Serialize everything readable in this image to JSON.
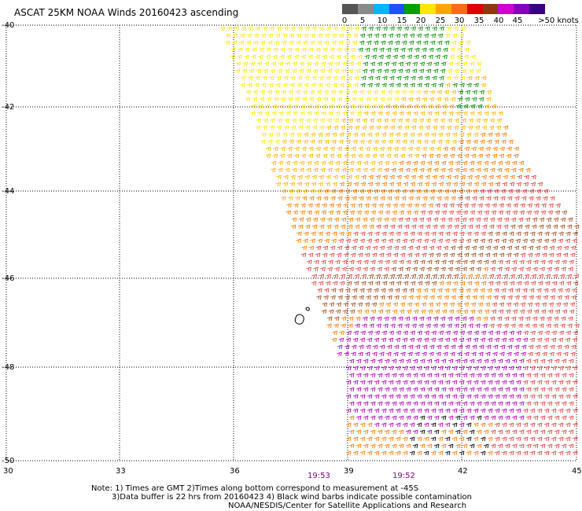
{
  "title": "ASCAT 25KM NOAA Winds 20160423 ascending",
  "color_scale": {
    "ticks": [
      "0",
      "5",
      "10",
      "15",
      "20",
      "25",
      "30",
      "35",
      "40",
      "45",
      ">50 knots"
    ],
    "colors": [
      "#555555",
      "#8a8a8a",
      "#00b4ff",
      "#1f4fff",
      "#00a000",
      "#ffe600",
      "#ffa500",
      "#ff6a1a",
      "#e00000",
      "#8b3a0f",
      "#d000d0",
      "#8000c0",
      "#3a007a"
    ]
  },
  "axes": {
    "x_labels": [
      "30",
      "33",
      "36",
      "39",
      "42",
      "45"
    ],
    "y_labels": [
      "-40",
      "-42",
      "-44",
      "-46",
      "-48",
      "-50"
    ],
    "gridlines": true
  },
  "time_labels": [
    "19:53",
    "19:52"
  ],
  "notes": [
    "Note: 1) Times are GMT 2)Times along bottom correspond to measurement at -45S",
    "3)Data buffer is 22 hrs from 20160423 4) Black wind barbs indicate possible contamination",
    "NOAA/NESDIS/Center for Satellite Applications and Research"
  ],
  "wind_speed_bands": {
    "description_colors": {
      "10-15 kt": "#008c00",
      "15-20 kt": "#ffe600",
      "20-25 kt": "#ffb400",
      "25-30 kt": "#ff7a00",
      "30-35 kt": "#e04040",
      "35-40 kt": "#a04a20",
      "40-45 kt": "#b000b0",
      "contaminated": "#000000"
    }
  }
}
